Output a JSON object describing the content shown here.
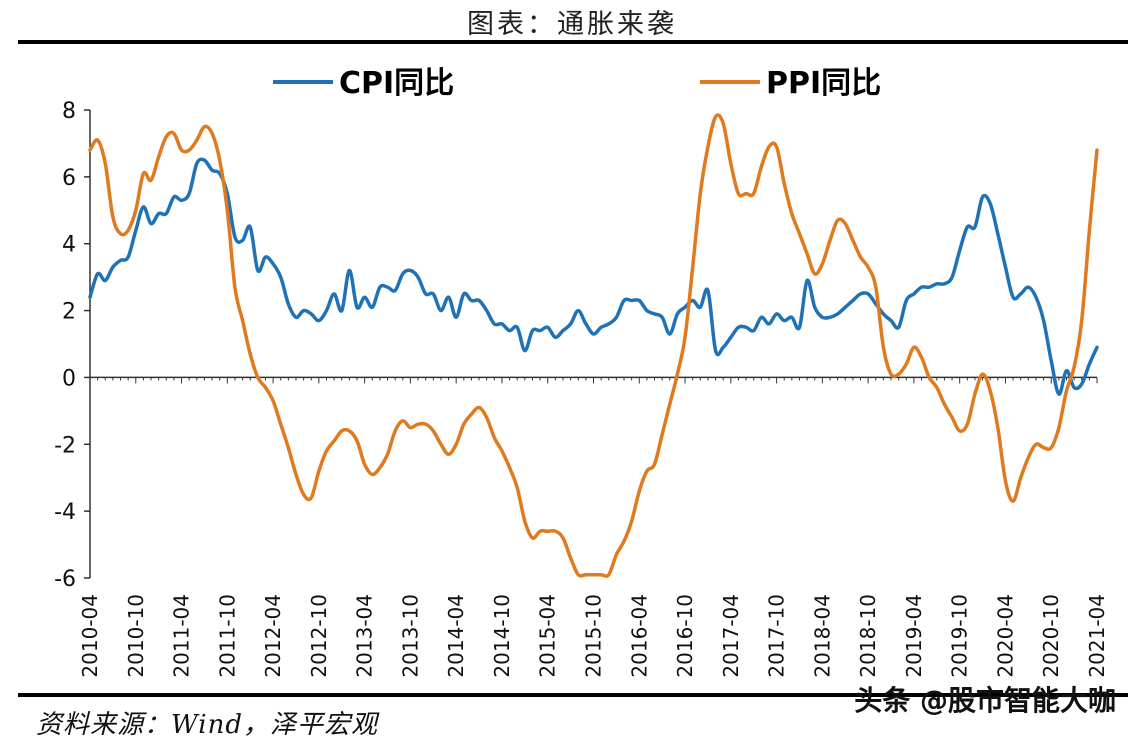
{
  "header": {
    "title": "图表：通胀来袭"
  },
  "footer": {
    "source": "资料来源：Wind，泽平宏观",
    "watermark": "头条 @股市智能大咖"
  },
  "colors": {
    "cpi": "#1f72b6",
    "ppi": "#e07a1f",
    "axis": "#333333"
  },
  "chart_data": {
    "type": "line",
    "title": "",
    "xlabel": "",
    "ylabel": "",
    "ylim": [
      -6,
      8
    ],
    "yticks": [
      -6,
      -4,
      -2,
      0,
      2,
      4,
      6,
      8
    ],
    "grid": false,
    "legend_position": "top",
    "x_start": "2010-04",
    "x_end": "2021-04",
    "x_ticks": [
      "2010-04",
      "2010-10",
      "2011-04",
      "2011-10",
      "2012-04",
      "2012-10",
      "2013-04",
      "2013-10",
      "2014-04",
      "2014-10",
      "2015-04",
      "2015-10",
      "2016-04",
      "2016-10",
      "2017-04",
      "2017-10",
      "2018-04",
      "2018-10",
      "2019-04",
      "2019-10",
      "2020-04",
      "2020-10",
      "2021-04"
    ],
    "series": [
      {
        "name": "CPI同比",
        "color": "#1f72b6",
        "points": [
          [
            "2010-04",
            2.4
          ],
          [
            "2010-05",
            3.1
          ],
          [
            "2010-06",
            2.9
          ],
          [
            "2010-07",
            3.3
          ],
          [
            "2010-08",
            3.5
          ],
          [
            "2010-09",
            3.6
          ],
          [
            "2010-10",
            4.4
          ],
          [
            "2010-11",
            5.1
          ],
          [
            "2010-12",
            4.6
          ],
          [
            "2011-01",
            4.9
          ],
          [
            "2011-02",
            4.9
          ],
          [
            "2011-03",
            5.4
          ],
          [
            "2011-04",
            5.3
          ],
          [
            "2011-05",
            5.5
          ],
          [
            "2011-06",
            6.4
          ],
          [
            "2011-07",
            6.5
          ],
          [
            "2011-08",
            6.2
          ],
          [
            "2011-09",
            6.1
          ],
          [
            "2011-10",
            5.5
          ],
          [
            "2011-11",
            4.2
          ],
          [
            "2011-12",
            4.1
          ],
          [
            "2012-01",
            4.5
          ],
          [
            "2012-02",
            3.2
          ],
          [
            "2012-03",
            3.6
          ],
          [
            "2012-04",
            3.4
          ],
          [
            "2012-05",
            3.0
          ],
          [
            "2012-06",
            2.2
          ],
          [
            "2012-07",
            1.8
          ],
          [
            "2012-08",
            2.0
          ],
          [
            "2012-09",
            1.9
          ],
          [
            "2012-10",
            1.7
          ],
          [
            "2012-11",
            2.0
          ],
          [
            "2012-12",
            2.5
          ],
          [
            "2013-01",
            2.0
          ],
          [
            "2013-02",
            3.2
          ],
          [
            "2013-03",
            2.1
          ],
          [
            "2013-04",
            2.4
          ],
          [
            "2013-05",
            2.1
          ],
          [
            "2013-06",
            2.7
          ],
          [
            "2013-07",
            2.7
          ],
          [
            "2013-08",
            2.6
          ],
          [
            "2013-09",
            3.1
          ],
          [
            "2013-10",
            3.2
          ],
          [
            "2013-11",
            3.0
          ],
          [
            "2013-12",
            2.5
          ],
          [
            "2014-01",
            2.5
          ],
          [
            "2014-02",
            2.0
          ],
          [
            "2014-03",
            2.4
          ],
          [
            "2014-04",
            1.8
          ],
          [
            "2014-05",
            2.5
          ],
          [
            "2014-06",
            2.3
          ],
          [
            "2014-07",
            2.3
          ],
          [
            "2014-08",
            2.0
          ],
          [
            "2014-09",
            1.6
          ],
          [
            "2014-10",
            1.6
          ],
          [
            "2014-11",
            1.4
          ],
          [
            "2014-12",
            1.5
          ],
          [
            "2015-01",
            0.8
          ],
          [
            "2015-02",
            1.4
          ],
          [
            "2015-03",
            1.4
          ],
          [
            "2015-04",
            1.5
          ],
          [
            "2015-05",
            1.2
          ],
          [
            "2015-06",
            1.4
          ],
          [
            "2015-07",
            1.6
          ],
          [
            "2015-08",
            2.0
          ],
          [
            "2015-09",
            1.6
          ],
          [
            "2015-10",
            1.3
          ],
          [
            "2015-11",
            1.5
          ],
          [
            "2015-12",
            1.6
          ],
          [
            "2016-01",
            1.8
          ],
          [
            "2016-02",
            2.3
          ],
          [
            "2016-03",
            2.3
          ],
          [
            "2016-04",
            2.3
          ],
          [
            "2016-05",
            2.0
          ],
          [
            "2016-06",
            1.9
          ],
          [
            "2016-07",
            1.8
          ],
          [
            "2016-08",
            1.3
          ],
          [
            "2016-09",
            1.9
          ],
          [
            "2016-10",
            2.1
          ],
          [
            "2016-11",
            2.3
          ],
          [
            "2016-12",
            2.1
          ],
          [
            "2017-01",
            2.6
          ],
          [
            "2017-02",
            0.8
          ],
          [
            "2017-03",
            0.9
          ],
          [
            "2017-04",
            1.2
          ],
          [
            "2017-05",
            1.5
          ],
          [
            "2017-06",
            1.5
          ],
          [
            "2017-07",
            1.4
          ],
          [
            "2017-08",
            1.8
          ],
          [
            "2017-09",
            1.6
          ],
          [
            "2017-10",
            1.9
          ],
          [
            "2017-11",
            1.7
          ],
          [
            "2017-12",
            1.8
          ],
          [
            "2018-01",
            1.5
          ],
          [
            "2018-02",
            2.9
          ],
          [
            "2018-03",
            2.1
          ],
          [
            "2018-04",
            1.8
          ],
          [
            "2018-05",
            1.8
          ],
          [
            "2018-06",
            1.9
          ],
          [
            "2018-07",
            2.1
          ],
          [
            "2018-08",
            2.3
          ],
          [
            "2018-09",
            2.5
          ],
          [
            "2018-10",
            2.5
          ],
          [
            "2018-11",
            2.2
          ],
          [
            "2018-12",
            1.9
          ],
          [
            "2019-01",
            1.7
          ],
          [
            "2019-02",
            1.5
          ],
          [
            "2019-03",
            2.3
          ],
          [
            "2019-04",
            2.5
          ],
          [
            "2019-05",
            2.7
          ],
          [
            "2019-06",
            2.7
          ],
          [
            "2019-07",
            2.8
          ],
          [
            "2019-08",
            2.8
          ],
          [
            "2019-09",
            3.0
          ],
          [
            "2019-10",
            3.8
          ],
          [
            "2019-11",
            4.5
          ],
          [
            "2019-12",
            4.5
          ],
          [
            "2020-01",
            5.4
          ],
          [
            "2020-02",
            5.2
          ],
          [
            "2020-03",
            4.3
          ],
          [
            "2020-04",
            3.3
          ],
          [
            "2020-05",
            2.4
          ],
          [
            "2020-06",
            2.5
          ],
          [
            "2020-07",
            2.7
          ],
          [
            "2020-08",
            2.4
          ],
          [
            "2020-09",
            1.7
          ],
          [
            "2020-10",
            0.5
          ],
          [
            "2020-11",
            -0.5
          ],
          [
            "2020-12",
            0.2
          ],
          [
            "2021-01",
            -0.3
          ],
          [
            "2021-02",
            -0.2
          ],
          [
            "2021-03",
            0.4
          ],
          [
            "2021-04",
            0.9
          ]
        ]
      },
      {
        "name": "PPI同比",
        "color": "#e07a1f",
        "points": [
          [
            "2010-04",
            6.8
          ],
          [
            "2010-05",
            7.1
          ],
          [
            "2010-06",
            6.4
          ],
          [
            "2010-07",
            4.8
          ],
          [
            "2010-08",
            4.3
          ],
          [
            "2010-09",
            4.4
          ],
          [
            "2010-10",
            5.0
          ],
          [
            "2010-11",
            6.1
          ],
          [
            "2010-12",
            5.9
          ],
          [
            "2011-01",
            6.6
          ],
          [
            "2011-02",
            7.2
          ],
          [
            "2011-03",
            7.3
          ],
          [
            "2011-04",
            6.8
          ],
          [
            "2011-05",
            6.8
          ],
          [
            "2011-06",
            7.1
          ],
          [
            "2011-07",
            7.5
          ],
          [
            "2011-08",
            7.3
          ],
          [
            "2011-09",
            6.5
          ],
          [
            "2011-10",
            5.0
          ],
          [
            "2011-11",
            2.7
          ],
          [
            "2011-12",
            1.7
          ],
          [
            "2012-01",
            0.7
          ],
          [
            "2012-02",
            0.0
          ],
          [
            "2012-03",
            -0.3
          ],
          [
            "2012-04",
            -0.7
          ],
          [
            "2012-05",
            -1.4
          ],
          [
            "2012-06",
            -2.1
          ],
          [
            "2012-07",
            -2.9
          ],
          [
            "2012-08",
            -3.5
          ],
          [
            "2012-09",
            -3.6
          ],
          [
            "2012-10",
            -2.8
          ],
          [
            "2012-11",
            -2.2
          ],
          [
            "2012-12",
            -1.9
          ],
          [
            "2013-01",
            -1.6
          ],
          [
            "2013-02",
            -1.6
          ],
          [
            "2013-03",
            -1.9
          ],
          [
            "2013-04",
            -2.6
          ],
          [
            "2013-05",
            -2.9
          ],
          [
            "2013-06",
            -2.7
          ],
          [
            "2013-07",
            -2.3
          ],
          [
            "2013-08",
            -1.6
          ],
          [
            "2013-09",
            -1.3
          ],
          [
            "2013-10",
            -1.5
          ],
          [
            "2013-11",
            -1.4
          ],
          [
            "2013-12",
            -1.4
          ],
          [
            "2014-01",
            -1.6
          ],
          [
            "2014-02",
            -2.0
          ],
          [
            "2014-03",
            -2.3
          ],
          [
            "2014-04",
            -2.0
          ],
          [
            "2014-05",
            -1.4
          ],
          [
            "2014-06",
            -1.1
          ],
          [
            "2014-07",
            -0.9
          ],
          [
            "2014-08",
            -1.2
          ],
          [
            "2014-09",
            -1.8
          ],
          [
            "2014-10",
            -2.2
          ],
          [
            "2014-11",
            -2.7
          ],
          [
            "2014-12",
            -3.3
          ],
          [
            "2015-01",
            -4.3
          ],
          [
            "2015-02",
            -4.8
          ],
          [
            "2015-03",
            -4.6
          ],
          [
            "2015-04",
            -4.6
          ],
          [
            "2015-05",
            -4.6
          ],
          [
            "2015-06",
            -4.8
          ],
          [
            "2015-07",
            -5.4
          ],
          [
            "2015-08",
            -5.9
          ],
          [
            "2015-09",
            -5.9
          ],
          [
            "2015-10",
            -5.9
          ],
          [
            "2015-11",
            -5.9
          ],
          [
            "2015-12",
            -5.9
          ],
          [
            "2016-01",
            -5.3
          ],
          [
            "2016-02",
            -4.9
          ],
          [
            "2016-03",
            -4.3
          ],
          [
            "2016-04",
            -3.4
          ],
          [
            "2016-05",
            -2.8
          ],
          [
            "2016-06",
            -2.6
          ],
          [
            "2016-07",
            -1.7
          ],
          [
            "2016-08",
            -0.8
          ],
          [
            "2016-09",
            0.1
          ],
          [
            "2016-10",
            1.2
          ],
          [
            "2016-11",
            3.3
          ],
          [
            "2016-12",
            5.5
          ],
          [
            "2017-01",
            6.9
          ],
          [
            "2017-02",
            7.8
          ],
          [
            "2017-03",
            7.6
          ],
          [
            "2017-04",
            6.4
          ],
          [
            "2017-05",
            5.5
          ],
          [
            "2017-06",
            5.5
          ],
          [
            "2017-07",
            5.5
          ],
          [
            "2017-08",
            6.3
          ],
          [
            "2017-09",
            6.9
          ],
          [
            "2017-10",
            6.9
          ],
          [
            "2017-11",
            5.8
          ],
          [
            "2017-12",
            4.9
          ],
          [
            "2018-01",
            4.3
          ],
          [
            "2018-02",
            3.7
          ],
          [
            "2018-03",
            3.1
          ],
          [
            "2018-04",
            3.4
          ],
          [
            "2018-05",
            4.1
          ],
          [
            "2018-06",
            4.7
          ],
          [
            "2018-07",
            4.6
          ],
          [
            "2018-08",
            4.1
          ],
          [
            "2018-09",
            3.6
          ],
          [
            "2018-10",
            3.3
          ],
          [
            "2018-11",
            2.7
          ],
          [
            "2018-12",
            0.9
          ],
          [
            "2019-01",
            0.1
          ],
          [
            "2019-02",
            0.1
          ],
          [
            "2019-03",
            0.4
          ],
          [
            "2019-04",
            0.9
          ],
          [
            "2019-05",
            0.6
          ],
          [
            "2019-06",
            0.0
          ],
          [
            "2019-07",
            -0.3
          ],
          [
            "2019-08",
            -0.8
          ],
          [
            "2019-09",
            -1.2
          ],
          [
            "2019-10",
            -1.6
          ],
          [
            "2019-11",
            -1.4
          ],
          [
            "2019-12",
            -0.5
          ],
          [
            "2020-01",
            0.1
          ],
          [
            "2020-02",
            -0.4
          ],
          [
            "2020-03",
            -1.5
          ],
          [
            "2020-04",
            -3.1
          ],
          [
            "2020-05",
            -3.7
          ],
          [
            "2020-06",
            -3.0
          ],
          [
            "2020-07",
            -2.4
          ],
          [
            "2020-08",
            -2.0
          ],
          [
            "2020-09",
            -2.1
          ],
          [
            "2020-10",
            -2.1
          ],
          [
            "2020-11",
            -1.5
          ],
          [
            "2020-12",
            -0.4
          ],
          [
            "2021-01",
            0.3
          ],
          [
            "2021-02",
            1.7
          ],
          [
            "2021-03",
            4.4
          ],
          [
            "2021-04",
            6.8
          ]
        ]
      }
    ]
  }
}
